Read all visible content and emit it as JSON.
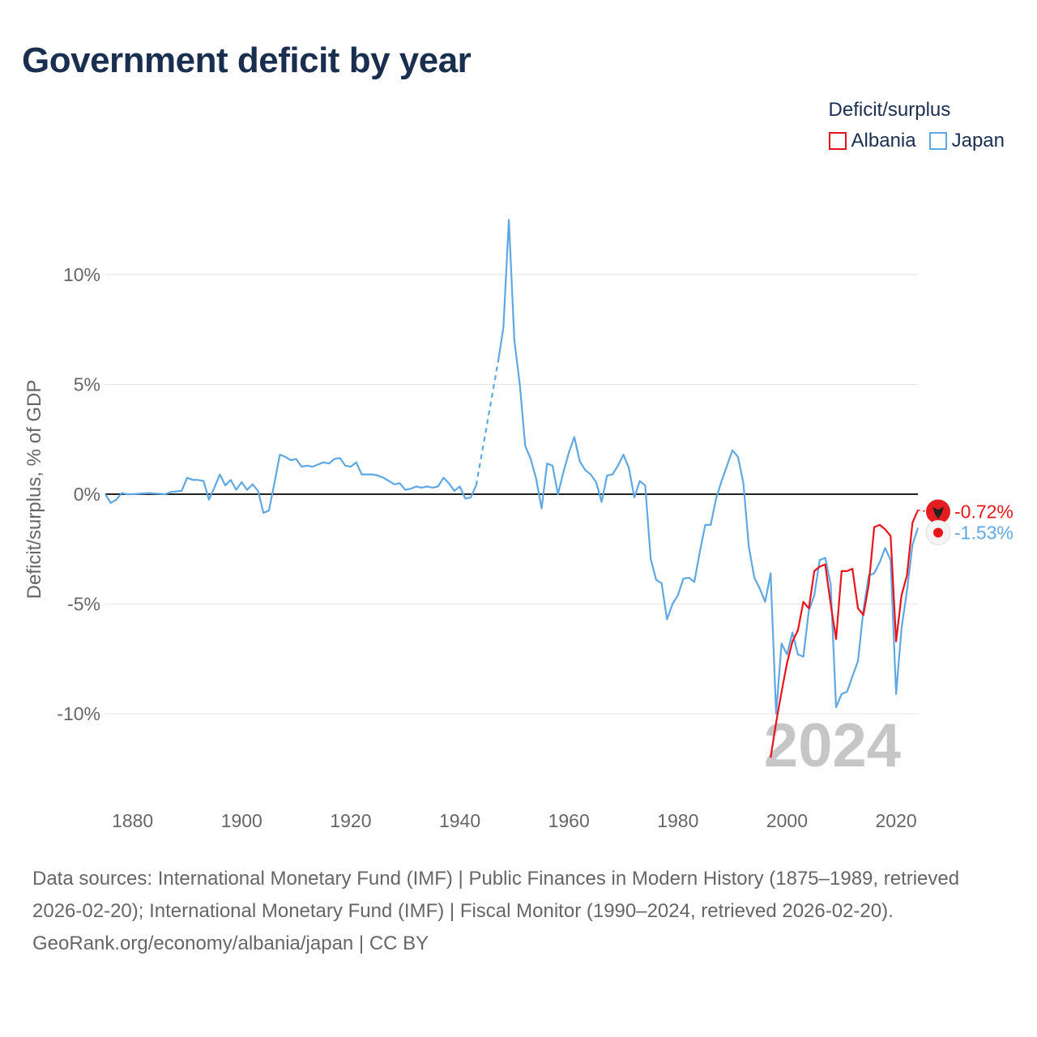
{
  "title": "Government deficit by year",
  "legend": {
    "title": "Deficit/surplus",
    "items": [
      {
        "name": "Albania",
        "color": "#e8141b"
      },
      {
        "name": "Japan",
        "color": "#5fa8e3"
      }
    ]
  },
  "footer": {
    "sources": "Data sources: International Monetary Fund (IMF) | Public Finances in Modern History (1875–1989, retrieved 2026-02-20); International Monetary Fund (IMF) | Fiscal Monitor (1990–2024, retrieved 2026-02-20).",
    "credit": "GeoRank.org/economy/albania/japan | CC BY"
  },
  "chart_data": {
    "type": "line",
    "title": "Government deficit by year",
    "ylabel": "Deficit/surplus, % of GDP",
    "xlabel": "",
    "xlim": [
      1875,
      2024
    ],
    "ylim": [
      -13,
      12.5
    ],
    "xticks": [
      1880,
      1900,
      1920,
      1940,
      1960,
      1980,
      2000,
      2020
    ],
    "xtick_labels": [
      "1880",
      "1900",
      "1920",
      "1940",
      "1960",
      "1980",
      "2000",
      "2020"
    ],
    "yticks": [
      10,
      5,
      0,
      -5,
      -10
    ],
    "ytick_labels": [
      "10%",
      "5%",
      "0%",
      "-5%",
      "-10%"
    ],
    "year_watermark": "2024",
    "end_labels": {
      "Albania": "-0.72%",
      "Japan": "-1.53%"
    },
    "series": [
      {
        "name": "Japan",
        "color": "#5fa8e3",
        "gaps": [
          [
            1943,
            1947
          ]
        ],
        "points": [
          [
            1875,
            0.0
          ],
          [
            1876,
            -0.4
          ],
          [
            1877,
            -0.25
          ],
          [
            1878,
            0.05
          ],
          [
            1879,
            0.0
          ],
          [
            1880,
            0.0
          ],
          [
            1883,
            0.05
          ],
          [
            1886,
            0.0
          ],
          [
            1887,
            0.1
          ],
          [
            1889,
            0.15
          ],
          [
            1890,
            0.75
          ],
          [
            1891,
            0.65
          ],
          [
            1892,
            0.65
          ],
          [
            1893,
            0.6
          ],
          [
            1894,
            -0.25
          ],
          [
            1895,
            0.3
          ],
          [
            1896,
            0.9
          ],
          [
            1897,
            0.4
          ],
          [
            1898,
            0.65
          ],
          [
            1899,
            0.2
          ],
          [
            1900,
            0.55
          ],
          [
            1901,
            0.2
          ],
          [
            1902,
            0.45
          ],
          [
            1903,
            0.15
          ],
          [
            1904,
            -0.85
          ],
          [
            1905,
            -0.75
          ],
          [
            1906,
            0.5
          ],
          [
            1907,
            1.8
          ],
          [
            1908,
            1.7
          ],
          [
            1909,
            1.55
          ],
          [
            1910,
            1.6
          ],
          [
            1911,
            1.25
          ],
          [
            1912,
            1.3
          ],
          [
            1913,
            1.25
          ],
          [
            1914,
            1.35
          ],
          [
            1915,
            1.45
          ],
          [
            1916,
            1.4
          ],
          [
            1917,
            1.6
          ],
          [
            1918,
            1.65
          ],
          [
            1919,
            1.3
          ],
          [
            1920,
            1.25
          ],
          [
            1921,
            1.45
          ],
          [
            1922,
            0.9
          ],
          [
            1924,
            0.9
          ],
          [
            1925,
            0.85
          ],
          [
            1926,
            0.75
          ],
          [
            1927,
            0.6
          ],
          [
            1928,
            0.45
          ],
          [
            1929,
            0.5
          ],
          [
            1930,
            0.2
          ],
          [
            1931,
            0.25
          ],
          [
            1932,
            0.35
          ],
          [
            1933,
            0.3
          ],
          [
            1934,
            0.35
          ],
          [
            1935,
            0.3
          ],
          [
            1936,
            0.35
          ],
          [
            1937,
            0.75
          ],
          [
            1938,
            0.5
          ],
          [
            1939,
            0.15
          ],
          [
            1940,
            0.35
          ],
          [
            1941,
            -0.2
          ],
          [
            1942,
            -0.15
          ],
          [
            1943,
            0.4
          ],
          [
            1947,
            6.0
          ],
          [
            1948,
            7.6
          ],
          [
            1949,
            12.5
          ],
          [
            1950,
            7.0
          ],
          [
            1951,
            5.0
          ],
          [
            1952,
            2.2
          ],
          [
            1953,
            1.6
          ],
          [
            1954,
            0.7
          ],
          [
            1955,
            -0.65
          ],
          [
            1956,
            1.4
          ],
          [
            1957,
            1.3
          ],
          [
            1958,
            0.0
          ],
          [
            1959,
            1.0
          ],
          [
            1960,
            1.9
          ],
          [
            1961,
            2.6
          ],
          [
            1962,
            1.5
          ],
          [
            1963,
            1.1
          ],
          [
            1964,
            0.9
          ],
          [
            1965,
            0.55
          ],
          [
            1966,
            -0.35
          ],
          [
            1967,
            0.85
          ],
          [
            1968,
            0.9
          ],
          [
            1969,
            1.3
          ],
          [
            1970,
            1.8
          ],
          [
            1971,
            1.2
          ],
          [
            1972,
            -0.15
          ],
          [
            1973,
            0.6
          ],
          [
            1974,
            0.4
          ],
          [
            1975,
            -2.95
          ],
          [
            1976,
            -3.9
          ],
          [
            1977,
            -4.05
          ],
          [
            1978,
            -5.7
          ],
          [
            1979,
            -5.0
          ],
          [
            1980,
            -4.6
          ],
          [
            1981,
            -3.85
          ],
          [
            1982,
            -3.8
          ],
          [
            1983,
            -4.0
          ],
          [
            1984,
            -2.65
          ],
          [
            1985,
            -1.4
          ],
          [
            1986,
            -1.4
          ],
          [
            1987,
            -0.2
          ],
          [
            1988,
            0.6
          ],
          [
            1989,
            1.3
          ],
          [
            1990,
            2.0
          ],
          [
            1991,
            1.7
          ],
          [
            1992,
            0.5
          ],
          [
            1993,
            -2.4
          ],
          [
            1994,
            -3.8
          ],
          [
            1995,
            -4.3
          ],
          [
            1996,
            -4.9
          ],
          [
            1997,
            -3.6
          ],
          [
            1998,
            -10.0
          ],
          [
            1999,
            -6.8
          ],
          [
            2000,
            -7.3
          ],
          [
            2001,
            -6.3
          ],
          [
            2002,
            -7.3
          ],
          [
            2003,
            -7.4
          ],
          [
            2004,
            -5.3
          ],
          [
            2005,
            -4.6
          ],
          [
            2006,
            -3.0
          ],
          [
            2007,
            -2.9
          ],
          [
            2008,
            -4.1
          ],
          [
            2009,
            -9.7
          ],
          [
            2010,
            -9.1
          ],
          [
            2011,
            -9.0
          ],
          [
            2012,
            -8.3
          ],
          [
            2013,
            -7.6
          ],
          [
            2014,
            -5.3
          ],
          [
            2015,
            -3.7
          ],
          [
            2016,
            -3.6
          ],
          [
            2017,
            -3.1
          ],
          [
            2018,
            -2.45
          ],
          [
            2019,
            -3.0
          ],
          [
            2020,
            -9.1
          ],
          [
            2021,
            -6.1
          ],
          [
            2022,
            -4.4
          ],
          [
            2023,
            -2.3
          ],
          [
            2024,
            -1.53
          ]
        ]
      },
      {
        "name": "Albania",
        "color": "#e8141b",
        "gaps": [],
        "points": [
          [
            1997,
            -12.0
          ],
          [
            1998,
            -10.4
          ],
          [
            1999,
            -9.0
          ],
          [
            2000,
            -7.7
          ],
          [
            2001,
            -6.7
          ],
          [
            2002,
            -6.2
          ],
          [
            2003,
            -4.9
          ],
          [
            2004,
            -5.2
          ],
          [
            2005,
            -3.5
          ],
          [
            2006,
            -3.3
          ],
          [
            2007,
            -3.2
          ],
          [
            2008,
            -5.0
          ],
          [
            2009,
            -6.6
          ],
          [
            2010,
            -3.5
          ],
          [
            2011,
            -3.5
          ],
          [
            2012,
            -3.4
          ],
          [
            2013,
            -5.2
          ],
          [
            2014,
            -5.5
          ],
          [
            2015,
            -4.1
          ],
          [
            2016,
            -1.5
          ],
          [
            2017,
            -1.4
          ],
          [
            2018,
            -1.6
          ],
          [
            2019,
            -1.9
          ],
          [
            2020,
            -6.7
          ],
          [
            2021,
            -4.6
          ],
          [
            2022,
            -3.7
          ],
          [
            2023,
            -1.3
          ],
          [
            2024,
            -0.72
          ]
        ]
      }
    ]
  }
}
